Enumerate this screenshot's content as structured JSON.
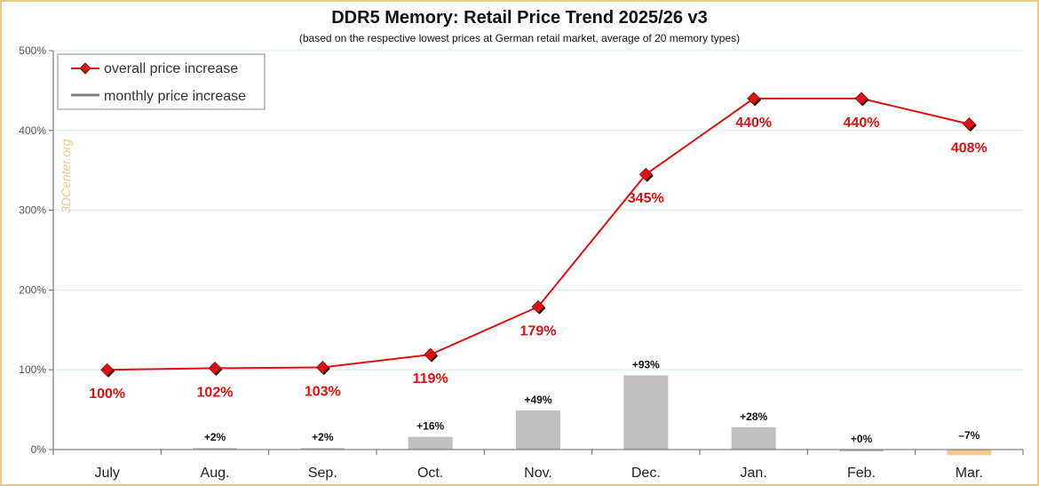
{
  "chart_data": {
    "type": "line",
    "title": "DDR5 Memory: Retail Price Trend 2025/26 v3",
    "subtitle": "(based on the respective lowest prices at German retail market, average of 20 memory types)",
    "watermark": "3DCenter.org",
    "categories": [
      "July",
      "Aug.",
      "Sep.",
      "Oct.",
      "Nov.",
      "Dec.",
      "Jan.",
      "Feb.",
      "Mar."
    ],
    "ylim": [
      0,
      500
    ],
    "yticks": [
      0,
      100,
      200,
      300,
      400,
      500
    ],
    "ytick_labels": [
      "0%",
      "100%",
      "200%",
      "300%",
      "400%",
      "500%"
    ],
    "grid": true,
    "legend_position": "top-left",
    "series": [
      {
        "name": "overall price increase",
        "type": "line",
        "color": "#dd1111",
        "values": [
          100,
          102,
          103,
          119,
          179,
          345,
          440,
          440,
          408
        ],
        "labels": [
          "100%",
          "102%",
          "103%",
          "119%",
          "179%",
          "345%",
          "440%",
          "440%",
          "408%"
        ]
      },
      {
        "name": "monthly price increase",
        "type": "bar",
        "color": "#c0c0c0",
        "negative_color": "#f5c98e",
        "values": [
          null,
          2,
          2,
          16,
          49,
          93,
          28,
          0,
          -7
        ],
        "labels": [
          "",
          "+2%",
          "+2%",
          "+16%",
          "+49%",
          "+93%",
          "+28%",
          "+0%",
          "–7%"
        ]
      }
    ]
  }
}
